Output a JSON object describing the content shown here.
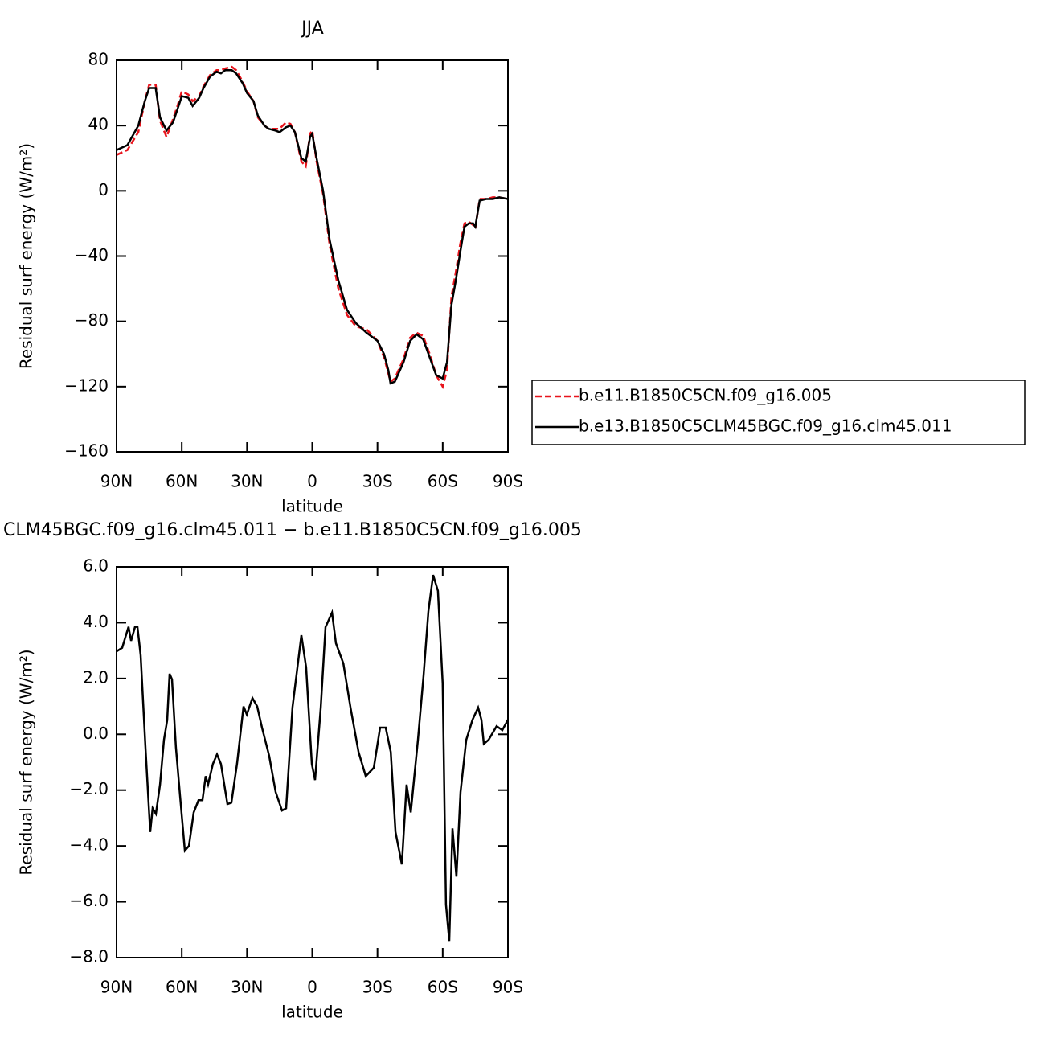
{
  "chart_data": [
    {
      "type": "line",
      "title": "JJA",
      "xlabel": "latitude",
      "ylabel": "Residual surf energy (W/m²)",
      "x": [
        90,
        85,
        80,
        77,
        75,
        72,
        70,
        67,
        64,
        62,
        60,
        57,
        55,
        52,
        50,
        47,
        44,
        42,
        40,
        37,
        35,
        32,
        30,
        27,
        25,
        22,
        20,
        17,
        15,
        12,
        10,
        8,
        5,
        3,
        1,
        0,
        -2,
        -5,
        -8,
        -12,
        -16,
        -20,
        -25,
        -30,
        -33,
        -35,
        -36,
        -38,
        -42,
        -45,
        -48,
        -51,
        -54,
        -57,
        -60,
        -62,
        -64,
        -66,
        -68,
        -70,
        -72,
        -74,
        -75,
        -77,
        -80,
        -83,
        -86,
        -90
      ],
      "series": [
        {
          "name": "b.e11.B1850C5CN.f09_g16.005",
          "color": "#e8141c",
          "dash": true,
          "values": [
            22,
            25,
            36,
            55,
            65,
            65,
            43,
            33,
            44,
            52,
            61,
            59,
            55,
            58,
            64,
            71,
            74,
            74,
            75,
            76,
            74,
            67,
            61,
            55,
            45,
            40,
            38,
            38,
            38,
            42,
            41,
            36,
            18,
            15,
            35,
            37,
            18,
            -2,
            -33,
            -60,
            -76,
            -83,
            -85,
            -92,
            -102,
            -112,
            -117,
            -115,
            -103,
            -90,
            -87,
            -89,
            -100,
            -113,
            -120,
            -110,
            -65,
            -50,
            -33,
            -20,
            -19,
            -21,
            -23,
            -5,
            -5,
            -4,
            -4,
            -5
          ]
        },
        {
          "name": "b.e13.B1850C5CLM45BGC.f09_g16.clm45.011",
          "color": "#000000",
          "dash": false,
          "values": [
            25,
            28,
            40,
            55,
            63,
            63,
            45,
            37,
            42,
            50,
            58,
            57,
            52,
            57,
            63,
            70,
            73,
            72,
            74,
            74,
            72,
            66,
            60,
            55,
            46,
            40,
            38,
            37,
            36,
            39,
            40,
            36,
            20,
            18,
            33,
            35,
            20,
            0,
            -30,
            -55,
            -73,
            -81,
            -87,
            -92,
            -100,
            -110,
            -118,
            -117,
            -105,
            -92,
            -88,
            -91,
            -102,
            -113,
            -115,
            -105,
            -70,
            -55,
            -38,
            -22,
            -20,
            -20,
            -22,
            -6,
            -5,
            -5,
            -4,
            -5
          ]
        }
      ],
      "xlim": [
        90,
        -90
      ],
      "xticks": [
        {
          "value": 90,
          "label": "90N"
        },
        {
          "value": 60,
          "label": "60N"
        },
        {
          "value": 30,
          "label": "30N"
        },
        0,
        {
          "value": -30,
          "label": "30S"
        },
        {
          "value": -60,
          "label": "60S"
        },
        {
          "value": -90,
          "label": "90S"
        }
      ],
      "ylim": [
        -160,
        80
      ],
      "yticks": [
        {
          "value": -160,
          "label": "−160"
        },
        {
          "value": -120,
          "label": "−120"
        },
        {
          "value": -80,
          "label": "−80"
        },
        {
          "value": -40,
          "label": "−40"
        },
        0,
        40,
        80
      ]
    },
    {
      "type": "line",
      "title": "CLM45BGC.f09_g16.clm45.011 − b.e11.B1850C5CN.f09_g16.005",
      "xlabel": "latitude",
      "ylabel": "Residual surf energy (W/m²)",
      "x": [
        90,
        87.4,
        84.5,
        83.3,
        81.5,
        80.4,
        78.9,
        76.7,
        74.5,
        73.4,
        71.9,
        70.0,
        68.2,
        66.7,
        65.6,
        64.5,
        62.7,
        60.8,
        58.6,
        56.7,
        54.5,
        52.3,
        50.5,
        49.0,
        47.9,
        45.7,
        43.8,
        42.0,
        39.0,
        37.2,
        34.6,
        31.6,
        30.1,
        27.5,
        25.3,
        23.1,
        19.8,
        16.8,
        13.9,
        12.0,
        9.1,
        5.0,
        2.8,
        0.2,
        -1.3,
        -3.9,
        -6.1,
        -9.1,
        -10.9,
        -14.3,
        -17.6,
        -21.3,
        -24.6,
        -28.3,
        -31.2,
        -33.8,
        -36.1,
        -38.3,
        -41.2,
        -43.4,
        -45.3,
        -48.6,
        -51.2,
        -53.4,
        -55.6,
        -57.8,
        -60.0,
        -61.5,
        -63.0,
        -64.5,
        -66.3,
        -68.2,
        -70.8,
        -73.7,
        -76.3,
        -77.8,
        -78.9,
        -81.1,
        -84.8,
        -87.4,
        -90
      ],
      "values": [
        2.97,
        3.1,
        3.85,
        3.35,
        3.85,
        3.85,
        2.83,
        -0.48,
        -3.5,
        -2.65,
        -2.85,
        -1.8,
        -0.2,
        0.5,
        2.17,
        1.97,
        -0.48,
        -2.2,
        -4.17,
        -4.0,
        -2.8,
        -2.36,
        -2.36,
        -1.5,
        -1.8,
        -1.06,
        -0.72,
        -1.06,
        -2.5,
        -2.45,
        -1.06,
        1.0,
        0.71,
        1.3,
        1.0,
        0.24,
        -0.77,
        -2.07,
        -2.73,
        -2.65,
        0.96,
        3.55,
        2.4,
        -1.06,
        -1.64,
        0.96,
        3.84,
        4.36,
        3.26,
        2.54,
        0.96,
        -0.63,
        -1.5,
        -1.2,
        0.24,
        0.24,
        -0.63,
        -3.5,
        -4.66,
        -1.8,
        -2.8,
        -0.2,
        2.1,
        4.4,
        5.71,
        5.14,
        1.82,
        -6.1,
        -7.4,
        -3.37,
        -5.1,
        -2.07,
        -0.2,
        0.52,
        0.96,
        0.52,
        -0.34,
        -0.2,
        0.29,
        0.15,
        0.52
      ],
      "color": "#000000",
      "xlim": [
        90,
        -90
      ],
      "xticks": [
        {
          "value": 90,
          "label": "90N"
        },
        {
          "value": 60,
          "label": "60N"
        },
        {
          "value": 30,
          "label": "30N"
        },
        0,
        {
          "value": -30,
          "label": "30S"
        },
        {
          "value": -60,
          "label": "60S"
        },
        {
          "value": -90,
          "label": "90S"
        }
      ],
      "ylim": [
        -8,
        6
      ],
      "yticks": [
        {
          "value": -8,
          "label": "−8.0"
        },
        {
          "value": -6,
          "label": "−6.0"
        },
        {
          "value": -4,
          "label": "−4.0"
        },
        {
          "value": -2,
          "label": "−2.0"
        },
        {
          "value": 0,
          "label": "0.0"
        },
        {
          "value": 2,
          "label": "2.0"
        },
        {
          "value": 4,
          "label": "4.0"
        },
        {
          "value": 6,
          "label": "6.0"
        }
      ]
    }
  ]
}
